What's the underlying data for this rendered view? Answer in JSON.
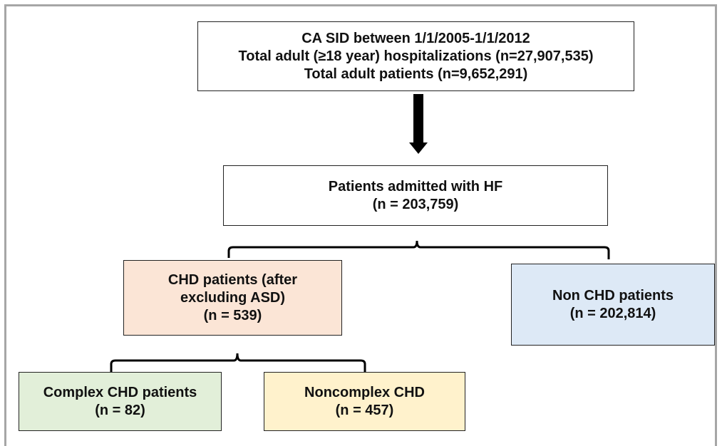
{
  "nodes": [
    {
      "lines": [
        "CA SID between 1/1/2005-1/1/2012",
        "Total adult (≥18 year) hospitalizations (n=27,907,535)",
        "Total adult patients (n=9,652,291)"
      ]
    },
    {
      "lines": [
        "Patients admitted with HF",
        "(n = 203,759)"
      ]
    },
    {
      "lines": [
        "CHD patients (after",
        "excluding ASD)",
        "(n = 539)"
      ]
    },
    {
      "lines": [
        "Non CHD patients",
        "(n = 202,814)"
      ]
    },
    {
      "lines": [
        "Complex CHD patients",
        "(n = 82)"
      ]
    },
    {
      "lines": [
        "Noncomplex CHD",
        "(n = 457)"
      ]
    }
  ]
}
